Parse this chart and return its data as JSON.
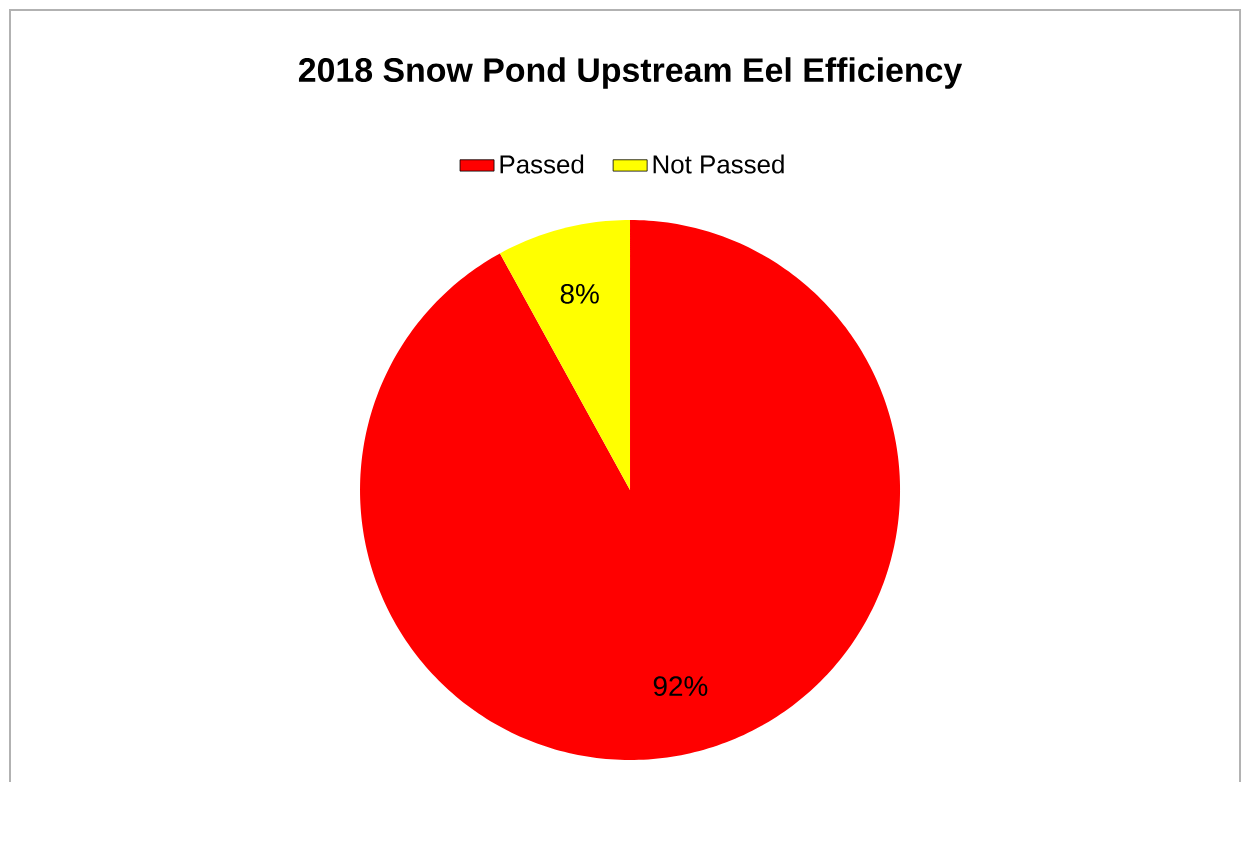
{
  "chart_data": {
    "type": "pie",
    "title": "2018 Snow Pond Upstream Eel Efficiency",
    "categories": [
      "Passed",
      "Not Passed"
    ],
    "values": [
      92,
      8
    ],
    "colors": [
      "#ff0000",
      "#ffff00"
    ],
    "value_labels": [
      "92%",
      "8%"
    ],
    "legend": "top"
  }
}
